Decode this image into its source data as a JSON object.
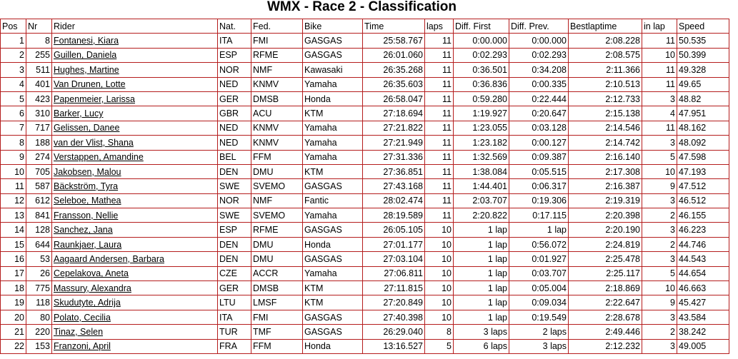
{
  "title": "WMX - Race 2 - Classification",
  "columns": [
    "Pos",
    "Nr",
    "Rider",
    "Nat.",
    "Fed.",
    "Bike",
    "Time",
    "laps",
    "Diff. First",
    "Diff. Prev.",
    "Bestlaptime",
    "in lap",
    "Speed"
  ],
  "rows": [
    [
      "1",
      "8",
      "Fontanesi, Kiara",
      "ITA",
      "FMI",
      "GASGAS",
      "25:58.767",
      "11",
      "0:00.000",
      "0:00.000",
      "2:08.228",
      "11",
      "50.535"
    ],
    [
      "2",
      "255",
      "Guillen, Daniela",
      "ESP",
      "RFME",
      "GASGAS",
      "26:01.060",
      "11",
      "0:02.293",
      "0:02.293",
      "2:08.575",
      "10",
      "50.399"
    ],
    [
      "3",
      "511",
      "Hughes, Martine",
      "NOR",
      "NMF",
      "Kawasaki",
      "26:35.268",
      "11",
      "0:36.501",
      "0:34.208",
      "2:11.366",
      "11",
      "49.328"
    ],
    [
      "4",
      "401",
      "Van Drunen, Lotte",
      "NED",
      "KNMV",
      "Yamaha",
      "26:35.603",
      "11",
      "0:36.836",
      "0:00.335",
      "2:10.513",
      "11",
      "49.65"
    ],
    [
      "5",
      "423",
      "Papenmeier, Larissa",
      "GER",
      "DMSB",
      "Honda",
      "26:58.047",
      "11",
      "0:59.280",
      "0:22.444",
      "2:12.733",
      "3",
      "48.82"
    ],
    [
      "6",
      "310",
      "Barker, Lucy",
      "GBR",
      "ACU",
      "KTM",
      "27:18.694",
      "11",
      "1:19.927",
      "0:20.647",
      "2:15.138",
      "4",
      "47.951"
    ],
    [
      "7",
      "717",
      "Gelissen, Danee",
      "NED",
      "KNMV",
      "Yamaha",
      "27:21.822",
      "11",
      "1:23.055",
      "0:03.128",
      "2:14.546",
      "11",
      "48.162"
    ],
    [
      "8",
      "188",
      "van der Vlist, Shana",
      "NED",
      "KNMV",
      "Yamaha",
      "27:21.949",
      "11",
      "1:23.182",
      "0:00.127",
      "2:14.742",
      "3",
      "48.092"
    ],
    [
      "9",
      "274",
      "Verstappen, Amandine",
      "BEL",
      "FFM",
      "Yamaha",
      "27:31.336",
      "11",
      "1:32.569",
      "0:09.387",
      "2:16.140",
      "5",
      "47.598"
    ],
    [
      "10",
      "705",
      "Jakobsen, Malou",
      "DEN",
      "DMU",
      "KTM",
      "27:36.851",
      "11",
      "1:38.084",
      "0:05.515",
      "2:17.308",
      "10",
      "47.193"
    ],
    [
      "11",
      "587",
      "Bäckström, Tyra",
      "SWE",
      "SVEMO",
      "GASGAS",
      "27:43.168",
      "11",
      "1:44.401",
      "0:06.317",
      "2:16.387",
      "9",
      "47.512"
    ],
    [
      "12",
      "612",
      "Seleboe, Mathea",
      "NOR",
      "NMF",
      "Fantic",
      "28:02.474",
      "11",
      "2:03.707",
      "0:19.306",
      "2:19.319",
      "3",
      "46.512"
    ],
    [
      "13",
      "841",
      "Fransson, Nellie",
      "SWE",
      "SVEMO",
      "Yamaha",
      "28:19.589",
      "11",
      "2:20.822",
      "0:17.115",
      "2:20.398",
      "2",
      "46.155"
    ],
    [
      "14",
      "128",
      "Sanchez, Jana",
      "ESP",
      "RFME",
      "GASGAS",
      "26:05.105",
      "10",
      "1 lap",
      "1 lap",
      "2:20.190",
      "3",
      "46.223"
    ],
    [
      "15",
      "644",
      "Raunkjaer, Laura",
      "DEN",
      "DMU",
      "Honda",
      "27:01.177",
      "10",
      "1 lap",
      "0:56.072",
      "2:24.819",
      "2",
      "44.746"
    ],
    [
      "16",
      "53",
      "Aagaard Andersen, Barbara",
      "DEN",
      "DMU",
      "GASGAS",
      "27:03.104",
      "10",
      "1 lap",
      "0:01.927",
      "2:25.478",
      "3",
      "44.543"
    ],
    [
      "17",
      "26",
      "Cepelakova, Aneta",
      "CZE",
      "ACCR",
      "Yamaha",
      "27:06.811",
      "10",
      "1 lap",
      "0:03.707",
      "2:25.117",
      "5",
      "44.654"
    ],
    [
      "18",
      "775",
      "Massury, Alexandra",
      "GER",
      "DMSB",
      "KTM",
      "27:11.815",
      "10",
      "1 lap",
      "0:05.004",
      "2:18.869",
      "10",
      "46.663"
    ],
    [
      "19",
      "118",
      "Skudutyte, Adrija",
      "LTU",
      "LMSF",
      "KTM",
      "27:20.849",
      "10",
      "1 lap",
      "0:09.034",
      "2:22.647",
      "9",
      "45.427"
    ],
    [
      "20",
      "80",
      "Polato, Cecilia",
      "ITA",
      "FMI",
      "GASGAS",
      "27:40.398",
      "10",
      "1 lap",
      "0:19.549",
      "2:28.678",
      "3",
      "43.584"
    ],
    [
      "21",
      "220",
      "Tinaz, Selen",
      "TUR",
      "TMF",
      "GASGAS",
      "26:29.040",
      "8",
      "3 laps",
      "2 laps",
      "2:49.446",
      "2",
      "38.242"
    ],
    [
      "22",
      "153",
      "Franzoni, April",
      "FRA",
      "FFM",
      "Honda",
      "13:16.527",
      "5",
      "6 laps",
      "3 laps",
      "2:12.232",
      "3",
      "49.005"
    ]
  ]
}
